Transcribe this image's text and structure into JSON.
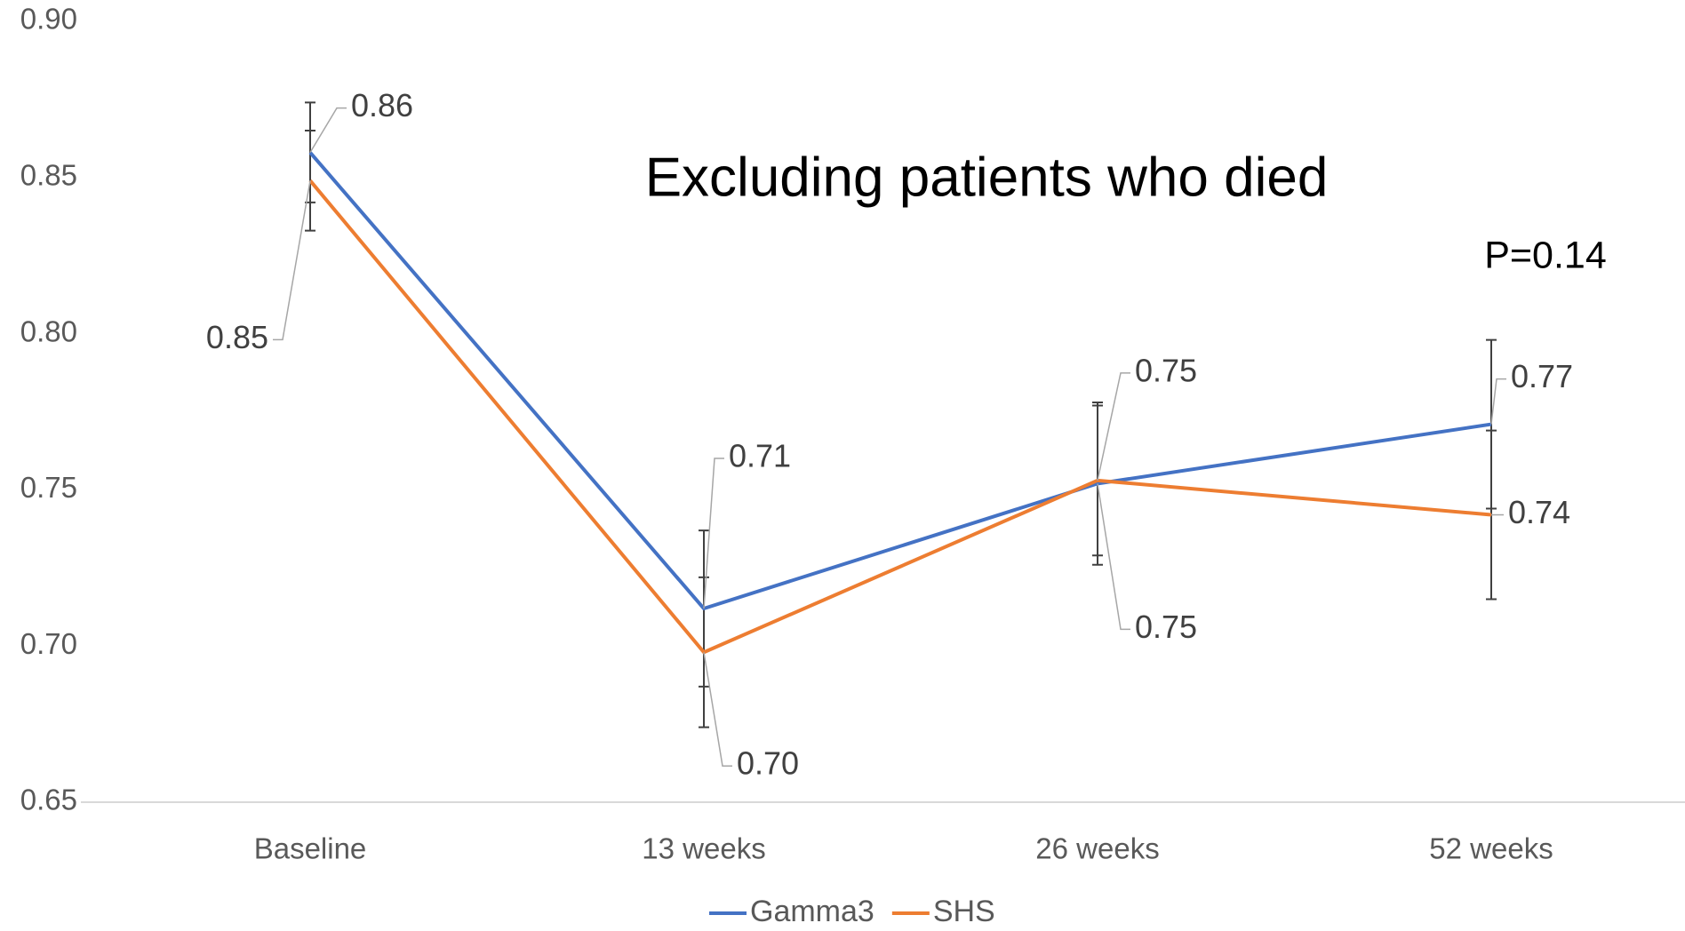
{
  "chart_data": {
    "type": "line",
    "title": "Excluding patients who died",
    "annotations": [
      "P=0.14"
    ],
    "categories": [
      "Baseline",
      "13 weeks",
      "26 weeks",
      "52 weeks"
    ],
    "series": [
      {
        "name": "Gamma3",
        "color": "#4472c4",
        "values": [
          0.858,
          0.712,
          0.752,
          0.771
        ],
        "value_labels": [
          "0.86",
          "0.71",
          "0.75",
          "0.77"
        ],
        "errors": [
          0.016,
          0.025,
          0.026,
          0.027
        ]
      },
      {
        "name": "SHS",
        "color": "#ed7d31",
        "values": [
          0.849,
          0.698,
          0.753,
          0.742
        ],
        "value_labels": [
          "0.85",
          "0.70",
          "0.75",
          "0.74"
        ],
        "errors": [
          0.016,
          0.024,
          0.024,
          0.027
        ]
      }
    ],
    "ylim": [
      0.65,
      0.9
    ],
    "yticks": [
      {
        "value": 0.9,
        "label": "0.90"
      },
      0.85,
      {
        "value": 0.8,
        "label": "0.80"
      },
      0.75,
      {
        "value": 0.7,
        "label": "0.70"
      },
      0.65
    ],
    "grid": false,
    "legend": "bottom"
  }
}
